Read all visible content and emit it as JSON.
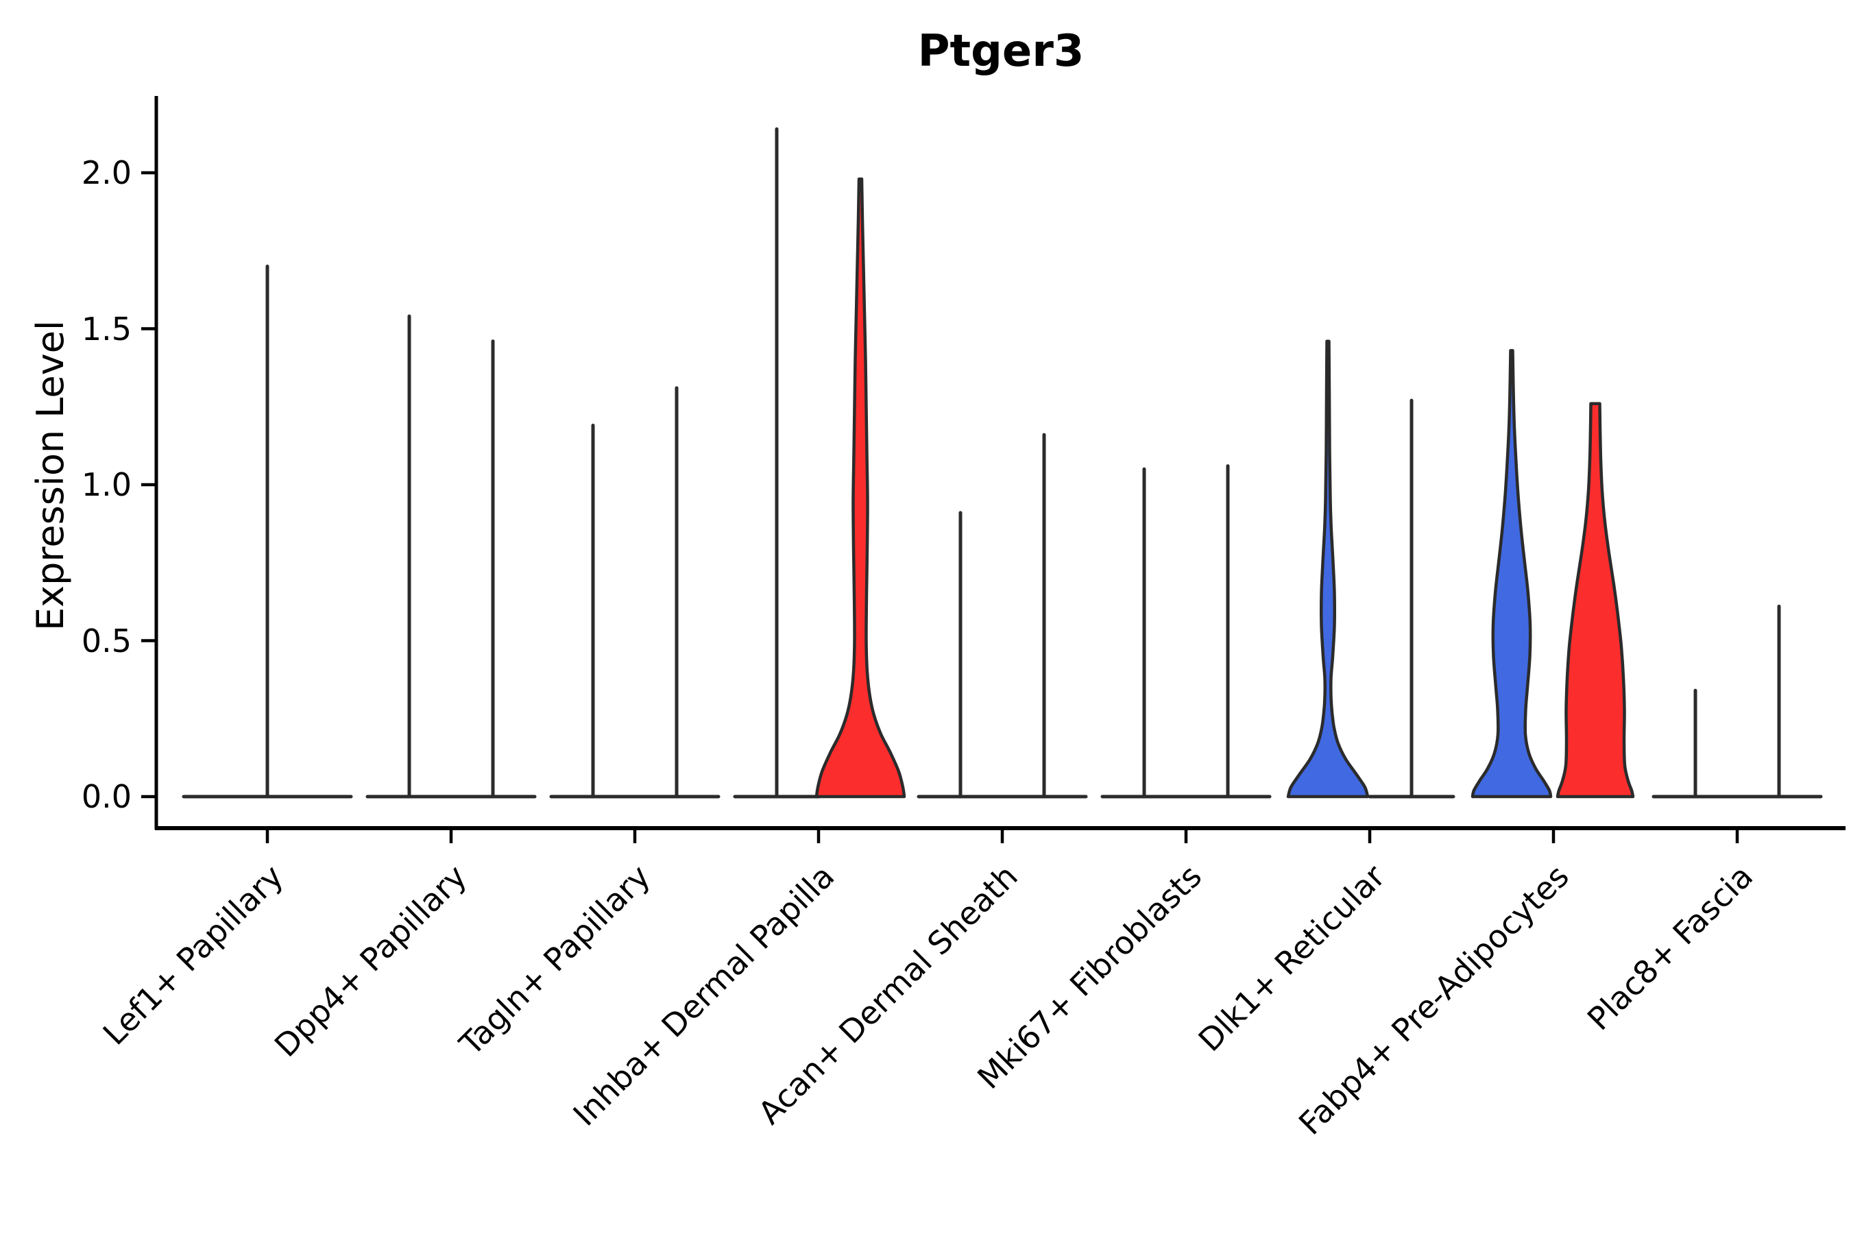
{
  "title": "Ptger3",
  "axes": {
    "ylabel": "Expression Level",
    "ytick_labels": [
      "0.0",
      "0.5",
      "1.0",
      "1.5",
      "2.0"
    ]
  },
  "chart_data": {
    "type": "violin",
    "title": "Ptger3",
    "xlabel": "",
    "ylabel": "Expression Level",
    "ylim": [
      -0.1,
      2.25
    ],
    "yticks": [
      0.0,
      0.5,
      1.0,
      1.5,
      2.0
    ],
    "grid": false,
    "legend_position": "none",
    "x_tick_rotation_deg": 45,
    "palette": {
      "blue": "#4169E1",
      "red": "#FB2D2D",
      "edge": "#2B2B2B",
      "axis": "#000000"
    },
    "categories": [
      "Lef1+ Papillary",
      "Dpp4+ Papillary",
      "Tagln+ Papillary",
      "Inhba+ Dermal Papilla",
      "Acan+ Dermal Sheath",
      "Mki67+ Fibroblasts",
      "Dlk1+ Reticular",
      "Fabp4+ Pre-Adipocytes",
      "Plac8+ Fascia"
    ],
    "violin_description": "Each category shows up to two violins (two sample groups). Most violins are collapsed to a thin vertical spike (nearly all cells at 0 expression) over a flat zero-density baseline; colored violins have visible density bodies. 'max' is the top expression value reached; 'profile' lists [expression_value, half_width_px] density outline samples.",
    "groups": [
      {
        "category": "Lef1+ Papillary",
        "violins": [
          {
            "side": "center",
            "fill": null,
            "max": 1.7
          }
        ]
      },
      {
        "category": "Dpp4+ Papillary",
        "violins": [
          {
            "side": "left",
            "fill": null,
            "max": 1.54
          },
          {
            "side": "right",
            "fill": null,
            "max": 1.46
          }
        ]
      },
      {
        "category": "Tagln+ Papillary",
        "violins": [
          {
            "side": "left",
            "fill": null,
            "max": 1.19
          },
          {
            "side": "right",
            "fill": null,
            "max": 1.31
          }
        ]
      },
      {
        "category": "Inhba+ Dermal Papilla",
        "violins": [
          {
            "side": "left",
            "fill": null,
            "max": 2.14
          },
          {
            "side": "right",
            "fill": "red",
            "max": 1.98,
            "profile": [
              [
                1.98,
                2
              ],
              [
                1.85,
                3
              ],
              [
                1.7,
                4.5
              ],
              [
                1.55,
                6
              ],
              [
                1.4,
                7.5
              ],
              [
                1.25,
                8.5
              ],
              [
                1.1,
                9.5
              ],
              [
                0.95,
                10.5
              ],
              [
                0.8,
                10
              ],
              [
                0.65,
                9
              ],
              [
                0.5,
                8.5
              ],
              [
                0.4,
                10
              ],
              [
                0.32,
                14
              ],
              [
                0.26,
                20
              ],
              [
                0.2,
                30
              ],
              [
                0.14,
                44
              ],
              [
                0.08,
                56
              ],
              [
                0.03,
                62
              ],
              [
                0.0,
                64
              ]
            ]
          }
        ]
      },
      {
        "category": "Acan+ Dermal Sheath",
        "violins": [
          {
            "side": "left",
            "fill": null,
            "max": 0.91
          },
          {
            "side": "right",
            "fill": null,
            "max": 1.16
          }
        ]
      },
      {
        "category": "Mki67+ Fibroblasts",
        "violins": [
          {
            "side": "left",
            "fill": null,
            "max": 1.05
          },
          {
            "side": "right",
            "fill": null,
            "max": 1.06
          }
        ]
      },
      {
        "category": "Dlk1+ Reticular",
        "violins": [
          {
            "side": "left",
            "fill": "blue",
            "max": 1.46,
            "profile": [
              [
                1.46,
                1.5
              ],
              [
                1.3,
                2
              ],
              [
                1.1,
                2.5
              ],
              [
                0.95,
                3.5
              ],
              [
                0.85,
                5
              ],
              [
                0.75,
                7.5
              ],
              [
                0.65,
                9.5
              ],
              [
                0.55,
                9.5
              ],
              [
                0.45,
                7
              ],
              [
                0.38,
                4.5
              ],
              [
                0.32,
                4.5
              ],
              [
                0.27,
                6
              ],
              [
                0.22,
                9
              ],
              [
                0.17,
                15
              ],
              [
                0.12,
                26
              ],
              [
                0.07,
                42
              ],
              [
                0.03,
                54
              ],
              [
                0.0,
                58
              ]
            ]
          },
          {
            "side": "right",
            "fill": null,
            "max": 1.27
          }
        ]
      },
      {
        "category": "Fabp4+ Pre-Adipocytes",
        "violins": [
          {
            "side": "left",
            "fill": "blue",
            "max": 1.43,
            "profile": [
              [
                1.43,
                1.5
              ],
              [
                1.3,
                2.5
              ],
              [
                1.18,
                4
              ],
              [
                1.05,
                7
              ],
              [
                0.95,
                10
              ],
              [
                0.85,
                14
              ],
              [
                0.75,
                19
              ],
              [
                0.65,
                24
              ],
              [
                0.55,
                27
              ],
              [
                0.45,
                26.5
              ],
              [
                0.35,
                23
              ],
              [
                0.28,
                20.5
              ],
              [
                0.2,
                20
              ],
              [
                0.14,
                25
              ],
              [
                0.09,
                35
              ],
              [
                0.05,
                47
              ],
              [
                0.02,
                55
              ],
              [
                0.0,
                57
              ]
            ]
          },
          {
            "side": "right",
            "fill": "red",
            "max": 1.26,
            "profile": [
              [
                1.26,
                6.5
              ],
              [
                1.18,
                7
              ],
              [
                1.08,
                8
              ],
              [
                0.98,
                10
              ],
              [
                0.88,
                14
              ],
              [
                0.78,
                20
              ],
              [
                0.68,
                27
              ],
              [
                0.58,
                33
              ],
              [
                0.48,
                38
              ],
              [
                0.38,
                41
              ],
              [
                0.28,
                42.5
              ],
              [
                0.18,
                42
              ],
              [
                0.1,
                43
              ],
              [
                0.05,
                48
              ],
              [
                0.02,
                53
              ],
              [
                0.0,
                55
              ]
            ]
          }
        ]
      },
      {
        "category": "Plac8+ Fascia",
        "violins": [
          {
            "side": "left",
            "fill": null,
            "max": 0.34
          },
          {
            "side": "right",
            "fill": null,
            "max": 0.61
          }
        ]
      }
    ]
  }
}
